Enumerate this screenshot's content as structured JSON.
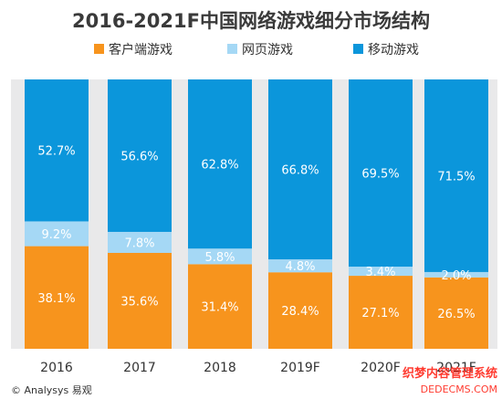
{
  "colors": {
    "client": "#f7941d",
    "web": "#a5d8f5",
    "mobile": "#0b96db"
  },
  "chart_data": {
    "type": "bar",
    "stacked": true,
    "title": "2016-2021F中国网络游戏细分市场结构",
    "categories": [
      "2016",
      "2017",
      "2018",
      "2019F",
      "2020F",
      "2021F"
    ],
    "series": [
      {
        "name": "客户端游戏",
        "color": "#f7941d",
        "values": [
          38.1,
          35.6,
          31.4,
          28.4,
          27.1,
          26.5
        ],
        "labels": [
          "38.1%",
          "35.6%",
          "31.4%",
          "28.4%",
          "27.1%",
          "26.5%"
        ]
      },
      {
        "name": "网页游戏",
        "color": "#a5d8f5",
        "values": [
          9.2,
          7.8,
          5.8,
          4.8,
          3.4,
          2.0
        ],
        "labels": [
          "9.2%",
          "7.8%",
          "5.8%",
          "4.8%",
          "3.4%",
          "2.0%"
        ]
      },
      {
        "name": "移动游戏",
        "color": "#0b96db",
        "values": [
          52.7,
          56.6,
          62.8,
          66.8,
          69.5,
          71.5
        ],
        "labels": [
          "52.7%",
          "56.6%",
          "62.8%",
          "66.8%",
          "69.5%",
          "71.5%"
        ]
      }
    ],
    "ylim": [
      0,
      100
    ],
    "legend_position": "top",
    "grid": false
  },
  "source_text": "© Analysys 易观",
  "watermark": {
    "line1": "织梦内容管理系统",
    "line2": "DEDECMS.COM"
  }
}
